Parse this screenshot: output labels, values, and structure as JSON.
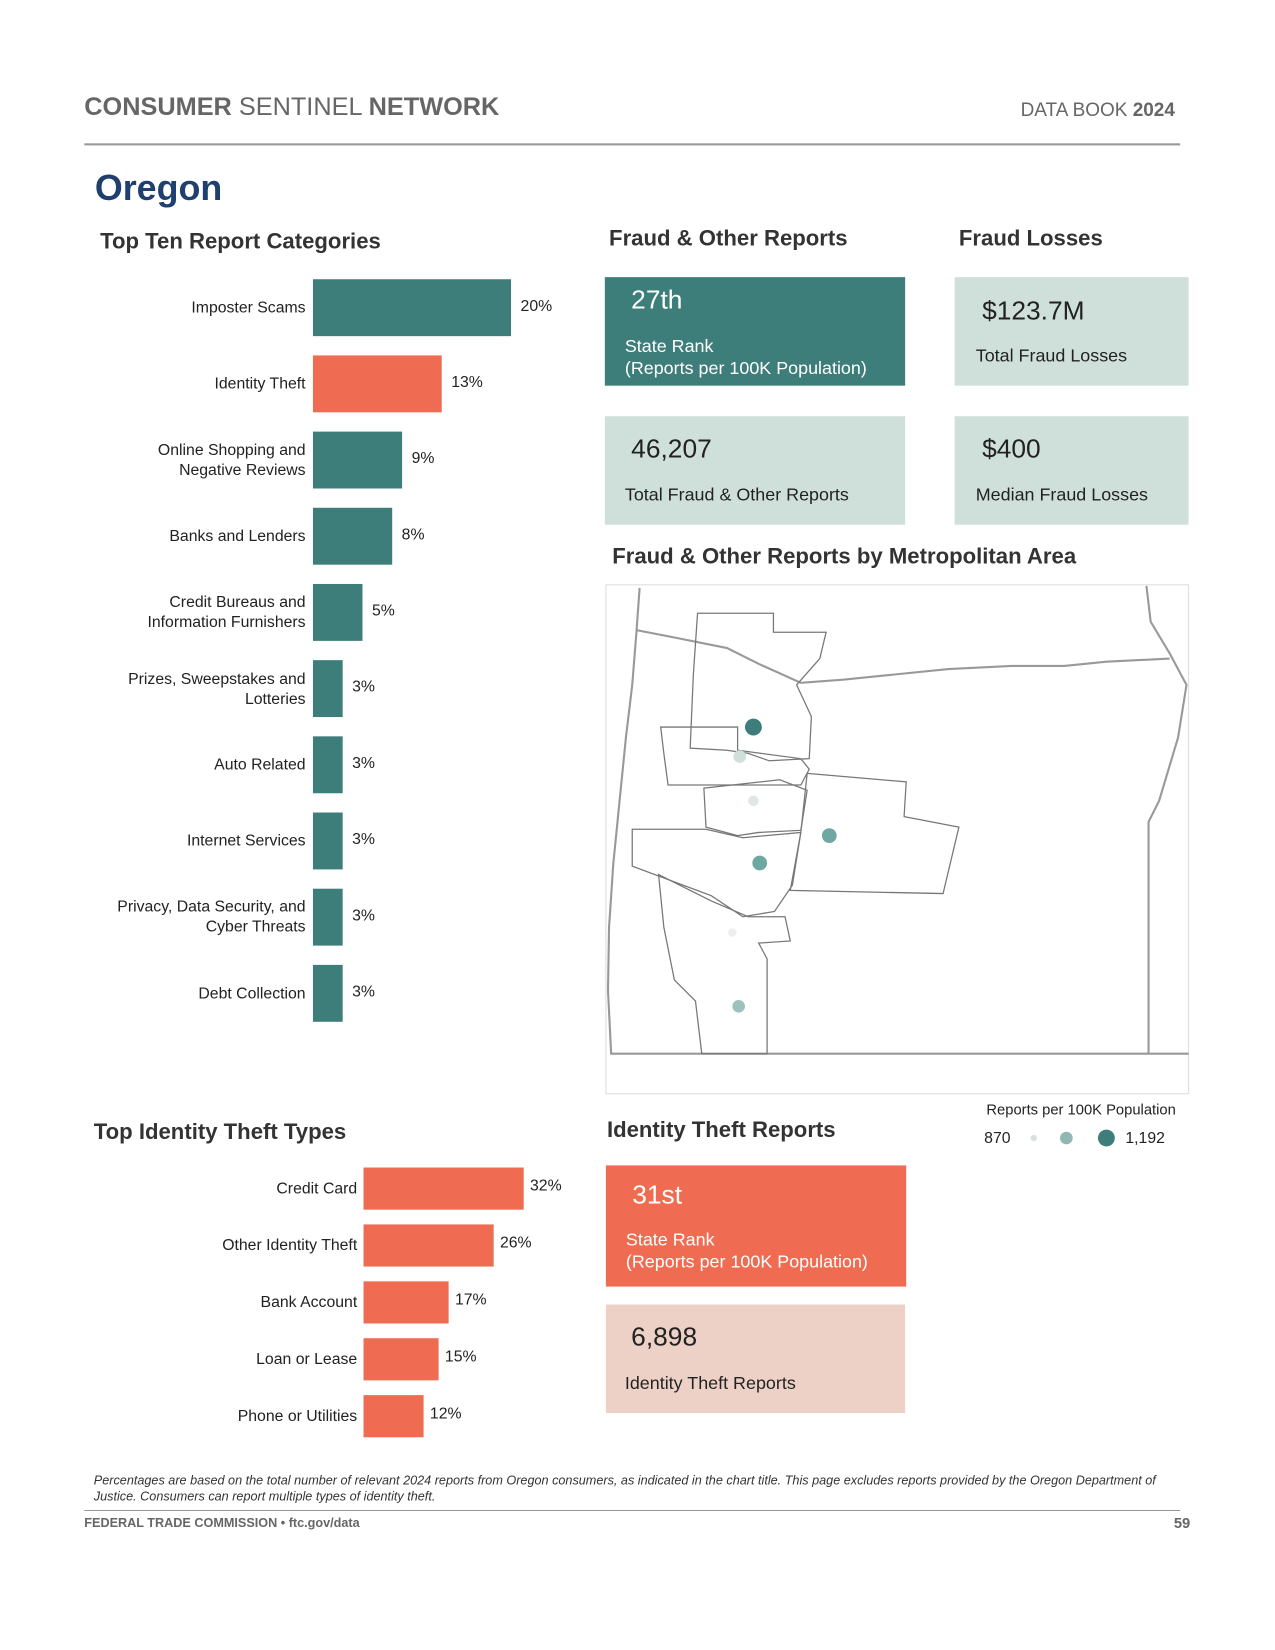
{
  "header": {
    "left": [
      "CONSUMER",
      "SENTINEL",
      "NETWORK"
    ],
    "right": [
      "DATA BOOK",
      "2024"
    ]
  },
  "state": "Oregon",
  "top_categories": {
    "title": "Top Ten Report Categories",
    "categories": [
      "Imposter Scams",
      "Identity Theft",
      "Online Shopping and Negative Reviews",
      "Banks and Lenders",
      "Credit Bureaus and Information Furnishers",
      "Prizes, Sweepstakes and Lotteries",
      "Auto Related",
      "Internet Services",
      "Privacy, Data Security, and Cyber Threats",
      "Debt Collection"
    ],
    "values": [
      20,
      13,
      9,
      8,
      5,
      3,
      3,
      3,
      3,
      3
    ],
    "value_labels": [
      "20%",
      "13%",
      "9%",
      "8%",
      "5%",
      "3%",
      "3%",
      "3%",
      "3%",
      "3%"
    ],
    "colors": [
      "#3d7d7a",
      "#ef6c52",
      "#3d7d7a",
      "#3d7d7a",
      "#3d7d7a",
      "#3d7d7a",
      "#3d7d7a",
      "#3d7d7a",
      "#3d7d7a",
      "#3d7d7a"
    ]
  },
  "fraud_reports": {
    "title": "Fraud & Other Reports",
    "rank": "27th",
    "rank_label": [
      "State Rank",
      "(Reports per 100K Population)"
    ],
    "total": "46,207",
    "total_label": "Total Fraud & Other Reports"
  },
  "fraud_losses": {
    "title": "Fraud Losses",
    "total": "$123.7M",
    "total_label": "Total Fraud Losses",
    "median": "$400",
    "median_label": "Median Fraud Losses"
  },
  "map": {
    "title": "Fraud & Other Reports by Metropolitan Area",
    "legend_title": "Reports per 100K Population",
    "legend_min": "870",
    "legend_max": "1,192"
  },
  "identity_types": {
    "title": "Top Identity Theft Types",
    "categories": [
      "Credit Card",
      "Other Identity Theft",
      "Bank Account",
      "Loan or Lease",
      "Phone or Utilities"
    ],
    "values": [
      32,
      26,
      17,
      15,
      12
    ],
    "value_labels": [
      "32%",
      "26%",
      "17%",
      "15%",
      "12%"
    ],
    "color": "#ef6c52"
  },
  "identity_reports": {
    "title": "Identity Theft Reports",
    "rank": "31st",
    "rank_label": [
      "State Rank",
      "(Reports per 100K Population)"
    ],
    "total": "6,898",
    "total_label": "Identity Theft Reports"
  },
  "footnote": "Percentages are based on the total number of relevant 2024 reports from Oregon consumers, as indicated in the chart title.  This page excludes reports provided by the Oregon Department of Justice.  Consumers can report multiple types of identity theft.",
  "footer": {
    "left": "FEDERAL TRADE COMMISSION • ftc.gov/data",
    "page": "59"
  }
}
